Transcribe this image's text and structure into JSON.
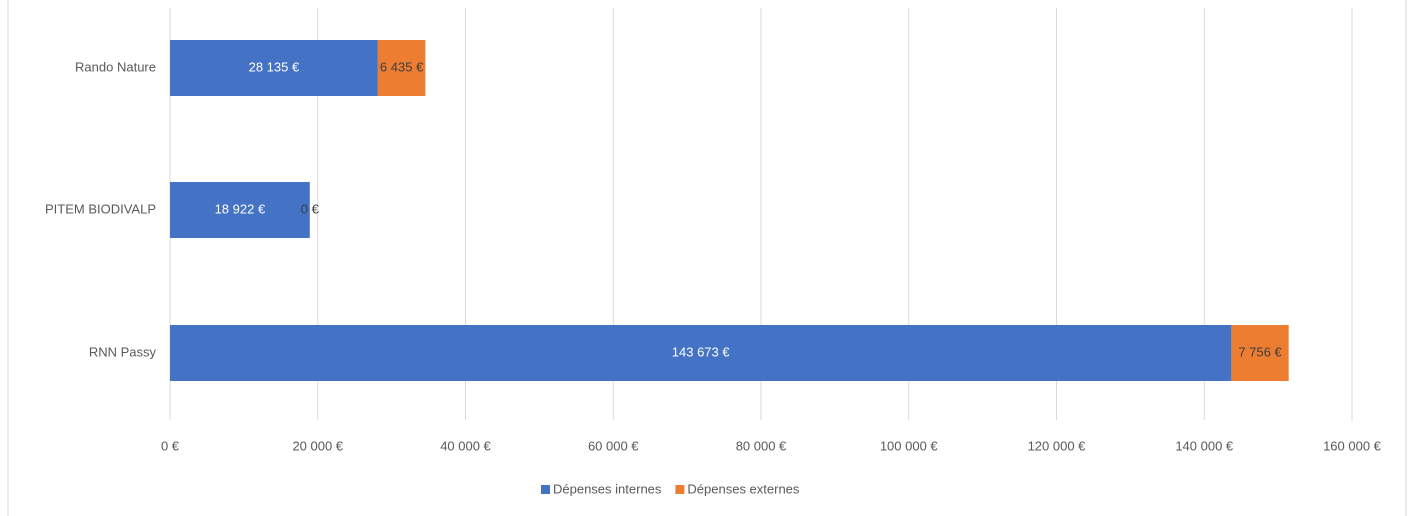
{
  "chart_data": {
    "type": "stacked-barh",
    "categories": [
      "Rando Nature",
      "PITEM BIODIVALP",
      "RNN Passy"
    ],
    "series": [
      {
        "name": "Dépenses internes",
        "color": "#4472c4",
        "values": [
          28135,
          18922,
          143673
        ],
        "value_labels": [
          "28 135 €",
          "18 922 €",
          "143 673 €"
        ]
      },
      {
        "name": "Dépenses externes",
        "color": "#ed7d31",
        "values": [
          6435,
          0,
          7756
        ],
        "value_labels": [
          "6 435 €",
          "0 €",
          "7 756 €"
        ]
      }
    ],
    "xlim": [
      0,
      160000
    ],
    "xticks": [
      {
        "value": 0,
        "label": "0 €"
      },
      {
        "value": 20000,
        "label": "20 000 €"
      },
      {
        "value": 40000,
        "label": "40 000 €"
      },
      {
        "value": 60000,
        "label": "60 000 €"
      },
      {
        "value": 80000,
        "label": "80 000 €"
      },
      {
        "value": 100000,
        "label": "100 000 €"
      },
      {
        "value": 120000,
        "label": "120 000 €"
      },
      {
        "value": 140000,
        "label": "140 000 €"
      },
      {
        "value": 160000,
        "label": "160 000 €"
      }
    ],
    "grid": true,
    "legend": "bottom"
  }
}
